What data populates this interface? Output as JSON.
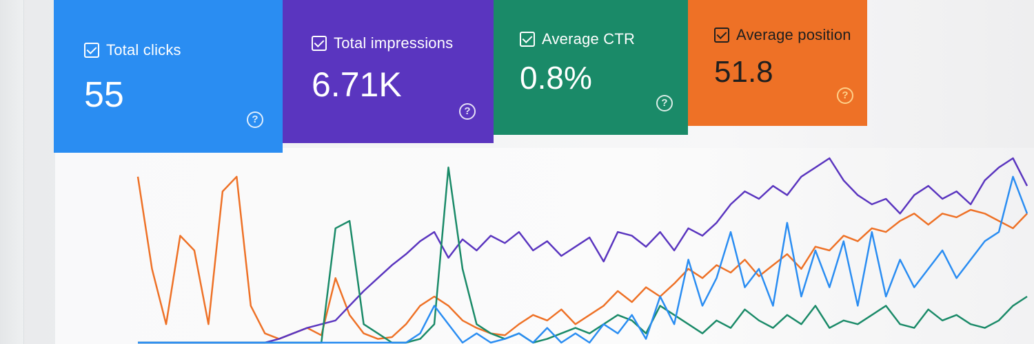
{
  "cards": [
    {
      "label": "Total clicks",
      "value": "55",
      "color": "#2a8df2"
    },
    {
      "label": "Total impressions",
      "value": "6.71K",
      "color": "#5a35bf"
    },
    {
      "label": "Average CTR",
      "value": "0.8%",
      "color": "#1a8a68"
    },
    {
      "label": "Average position",
      "value": "51.8",
      "color": "#ee7126"
    }
  ],
  "chart_data": {
    "type": "line",
    "grid": false,
    "x": [
      1,
      2,
      3,
      4,
      5,
      6,
      7,
      8,
      9,
      10,
      11,
      12,
      13,
      14,
      15,
      16,
      17,
      18,
      19,
      20,
      21,
      22,
      23,
      24,
      25,
      26,
      27,
      28,
      29,
      30,
      31,
      32,
      33,
      34,
      35,
      36,
      37,
      38,
      39,
      40,
      41,
      42,
      43,
      44,
      45,
      46,
      47,
      48,
      49,
      50,
      51,
      52,
      53,
      54,
      55,
      56,
      57,
      58,
      59,
      60,
      61,
      62,
      63,
      64
    ],
    "ylim": [
      0,
      1
    ],
    "series": [
      {
        "color": "#ee7126",
        "values": [
          0.9,
          0.4,
          0.1,
          0.58,
          0.5,
          0.1,
          0.82,
          0.9,
          0.2,
          0.05,
          0.02,
          0.05,
          0.08,
          0.04,
          0.35,
          0.15,
          0.05,
          0.02,
          0.03,
          0.1,
          0.2,
          0.25,
          0.2,
          0.12,
          0.08,
          0.05,
          0.04,
          0.1,
          0.15,
          0.12,
          0.18,
          0.1,
          0.15,
          0.2,
          0.28,
          0.22,
          0.3,
          0.25,
          0.32,
          0.4,
          0.35,
          0.42,
          0.38,
          0.45,
          0.36,
          0.42,
          0.48,
          0.4,
          0.52,
          0.5,
          0.58,
          0.55,
          0.62,
          0.6,
          0.66,
          0.7,
          0.64,
          0.7,
          0.68,
          0.72,
          0.7,
          0.66,
          0.62,
          0.7
        ]
      },
      {
        "color": "#5a35bf",
        "values": [
          0.0,
          0.0,
          0.0,
          0.0,
          0.0,
          0.0,
          0.0,
          0.0,
          0.0,
          0.0,
          0.02,
          0.05,
          0.08,
          0.1,
          0.12,
          0.2,
          0.28,
          0.35,
          0.42,
          0.48,
          0.55,
          0.6,
          0.46,
          0.56,
          0.5,
          0.58,
          0.54,
          0.6,
          0.5,
          0.55,
          0.47,
          0.52,
          0.57,
          0.44,
          0.6,
          0.58,
          0.52,
          0.6,
          0.5,
          0.62,
          0.58,
          0.65,
          0.75,
          0.82,
          0.78,
          0.85,
          0.8,
          0.9,
          0.95,
          1.0,
          0.88,
          0.8,
          0.75,
          0.78,
          0.7,
          0.8,
          0.85,
          0.78,
          0.82,
          0.75,
          0.88,
          0.95,
          1.0,
          0.85
        ]
      },
      {
        "color": "#1a8a68",
        "values": [
          0.0,
          0.0,
          0.0,
          0.0,
          0.0,
          0.0,
          0.0,
          0.0,
          0.0,
          0.0,
          0.0,
          0.0,
          0.0,
          0.0,
          0.62,
          0.66,
          0.1,
          0.05,
          0.0,
          0.0,
          0.02,
          0.1,
          0.95,
          0.4,
          0.1,
          0.05,
          0.02,
          0.05,
          0.0,
          0.02,
          0.05,
          0.08,
          0.05,
          0.1,
          0.15,
          0.12,
          0.05,
          0.2,
          0.15,
          0.1,
          0.05,
          0.12,
          0.08,
          0.18,
          0.12,
          0.08,
          0.15,
          0.1,
          0.2,
          0.08,
          0.12,
          0.1,
          0.15,
          0.2,
          0.1,
          0.08,
          0.18,
          0.12,
          0.15,
          0.1,
          0.08,
          0.12,
          0.2,
          0.25
        ]
      },
      {
        "color": "#2a8df2",
        "values": [
          0.0,
          0.0,
          0.0,
          0.0,
          0.0,
          0.0,
          0.0,
          0.0,
          0.0,
          0.0,
          0.0,
          0.0,
          0.0,
          0.0,
          0.0,
          0.0,
          0.0,
          0.0,
          0.0,
          0.0,
          0.05,
          0.2,
          0.1,
          0.0,
          0.05,
          0.0,
          0.02,
          0.05,
          0.0,
          0.08,
          0.0,
          0.05,
          0.0,
          0.1,
          0.05,
          0.15,
          0.02,
          0.25,
          0.1,
          0.45,
          0.2,
          0.35,
          0.6,
          0.3,
          0.4,
          0.2,
          0.65,
          0.25,
          0.5,
          0.3,
          0.55,
          0.2,
          0.6,
          0.25,
          0.45,
          0.3,
          0.4,
          0.5,
          0.35,
          0.45,
          0.55,
          0.6,
          0.9,
          0.7
        ]
      }
    ]
  }
}
